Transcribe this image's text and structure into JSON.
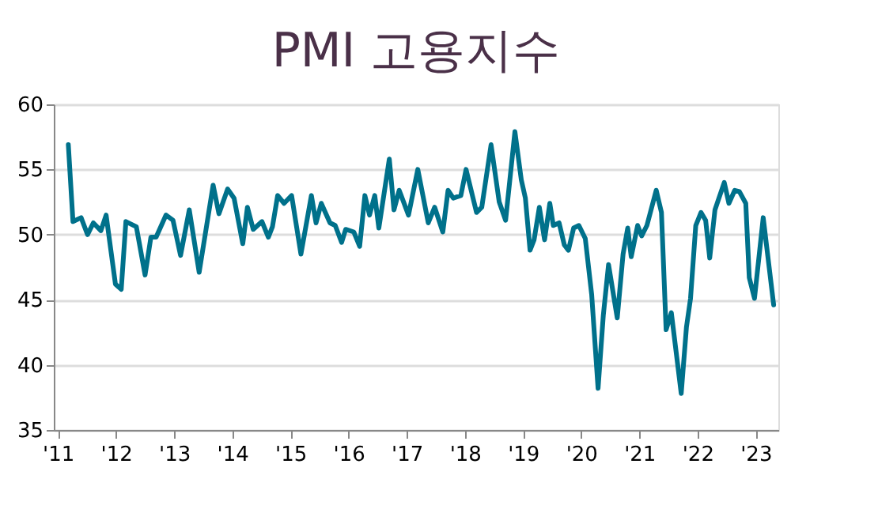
{
  "chart_data": {
    "type": "line",
    "title": "PMI 고용지수",
    "x": [
      2011.18,
      2011.26,
      2011.4,
      2011.51,
      2011.61,
      2011.74,
      2011.83,
      2011.99,
      2012.09,
      2012.17,
      2012.35,
      2012.5,
      2012.6,
      2012.69,
      2012.86,
      2012.98,
      2013.11,
      2013.26,
      2013.43,
      2013.67,
      2013.77,
      2013.92,
      2014.03,
      2014.18,
      2014.26,
      2014.36,
      2014.51,
      2014.62,
      2014.69,
      2014.78,
      2014.89,
      2015.02,
      2015.18,
      2015.36,
      2015.44,
      2015.53,
      2015.68,
      2015.77,
      2015.88,
      2015.95,
      2016.09,
      2016.19,
      2016.28,
      2016.36,
      2016.45,
      2016.52,
      2016.7,
      2016.78,
      2016.87,
      2017.03,
      2017.19,
      2017.37,
      2017.48,
      2017.62,
      2017.71,
      2017.8,
      2017.93,
      2018.02,
      2018.2,
      2018.29,
      2018.45,
      2018.59,
      2018.7,
      2018.86,
      2018.97,
      2019.04,
      2019.12,
      2019.19,
      2019.28,
      2019.37,
      2019.46,
      2019.52,
      2019.62,
      2019.71,
      2019.78,
      2019.87,
      2019.96,
      2020.07,
      2020.18,
      2020.29,
      2020.38,
      2020.47,
      2020.62,
      2020.72,
      2020.8,
      2020.86,
      2020.97,
      2021.04,
      2021.13,
      2021.29,
      2021.38,
      2021.46,
      2021.55,
      2021.72,
      2021.81,
      2021.88,
      2021.97,
      2022.06,
      2022.14,
      2022.21,
      2022.3,
      2022.46,
      2022.54,
      2022.64,
      2022.72,
      2022.83,
      2022.89,
      2022.98,
      2023.13,
      2023.31
    ],
    "series": [
      {
        "color": "#00718b",
        "values": [
          56.9,
          51.0,
          51.3,
          50.0,
          50.9,
          50.3,
          51.5,
          46.2,
          45.8,
          51.0,
          50.6,
          46.9,
          49.8,
          49.8,
          51.5,
          51.1,
          48.4,
          51.9,
          47.1,
          53.8,
          51.6,
          53.5,
          52.8,
          49.3,
          52.1,
          50.4,
          51.0,
          49.8,
          50.6,
          53.0,
          52.4,
          53.0,
          48.5,
          53.0,
          50.9,
          52.4,
          50.9,
          50.7,
          49.4,
          50.4,
          50.2,
          49.1,
          53.0,
          51.5,
          53.0,
          50.5,
          55.8,
          51.9,
          53.4,
          51.5,
          55.0,
          50.9,
          52.1,
          50.2,
          53.4,
          52.8,
          53.0,
          55.0,
          51.7,
          52.1,
          56.9,
          52.5,
          51.1,
          57.9,
          54.2,
          52.8,
          48.8,
          49.6,
          52.1,
          49.6,
          52.4,
          50.7,
          50.9,
          49.2,
          48.8,
          50.5,
          50.7,
          49.7,
          45.4,
          38.2,
          43.8,
          47.7,
          43.6,
          48.5,
          50.5,
          48.3,
          50.7,
          49.9,
          50.7,
          53.4,
          51.7,
          42.7,
          44.0,
          37.8,
          42.9,
          45.1,
          50.7,
          51.7,
          51.1,
          48.2,
          51.9,
          54.0,
          52.4,
          53.4,
          53.3,
          52.4,
          46.7,
          45.1,
          51.3,
          44.6
        ]
      }
    ],
    "xlim": [
      2010.93,
      2023.39
    ],
    "xticks": [
      {
        "value": 2011,
        "label": "'11"
      },
      {
        "value": 2012,
        "label": "'12"
      },
      {
        "value": 2013,
        "label": "'13"
      },
      {
        "value": 2014,
        "label": "'14"
      },
      {
        "value": 2015,
        "label": "'15"
      },
      {
        "value": 2016,
        "label": "'16"
      },
      {
        "value": 2017,
        "label": "'17"
      },
      {
        "value": 2018,
        "label": "'18"
      },
      {
        "value": 2019,
        "label": "'19"
      },
      {
        "value": 2020,
        "label": "'20"
      },
      {
        "value": 2021,
        "label": "'21"
      },
      {
        "value": 2022,
        "label": "'22"
      },
      {
        "value": 2023,
        "label": "'23"
      }
    ],
    "ylim": [
      35,
      60
    ],
    "yticks": [
      35,
      40,
      45,
      50,
      55,
      60
    ],
    "grid": "y",
    "line_style": "solid",
    "marker": "none",
    "legend": false
  }
}
